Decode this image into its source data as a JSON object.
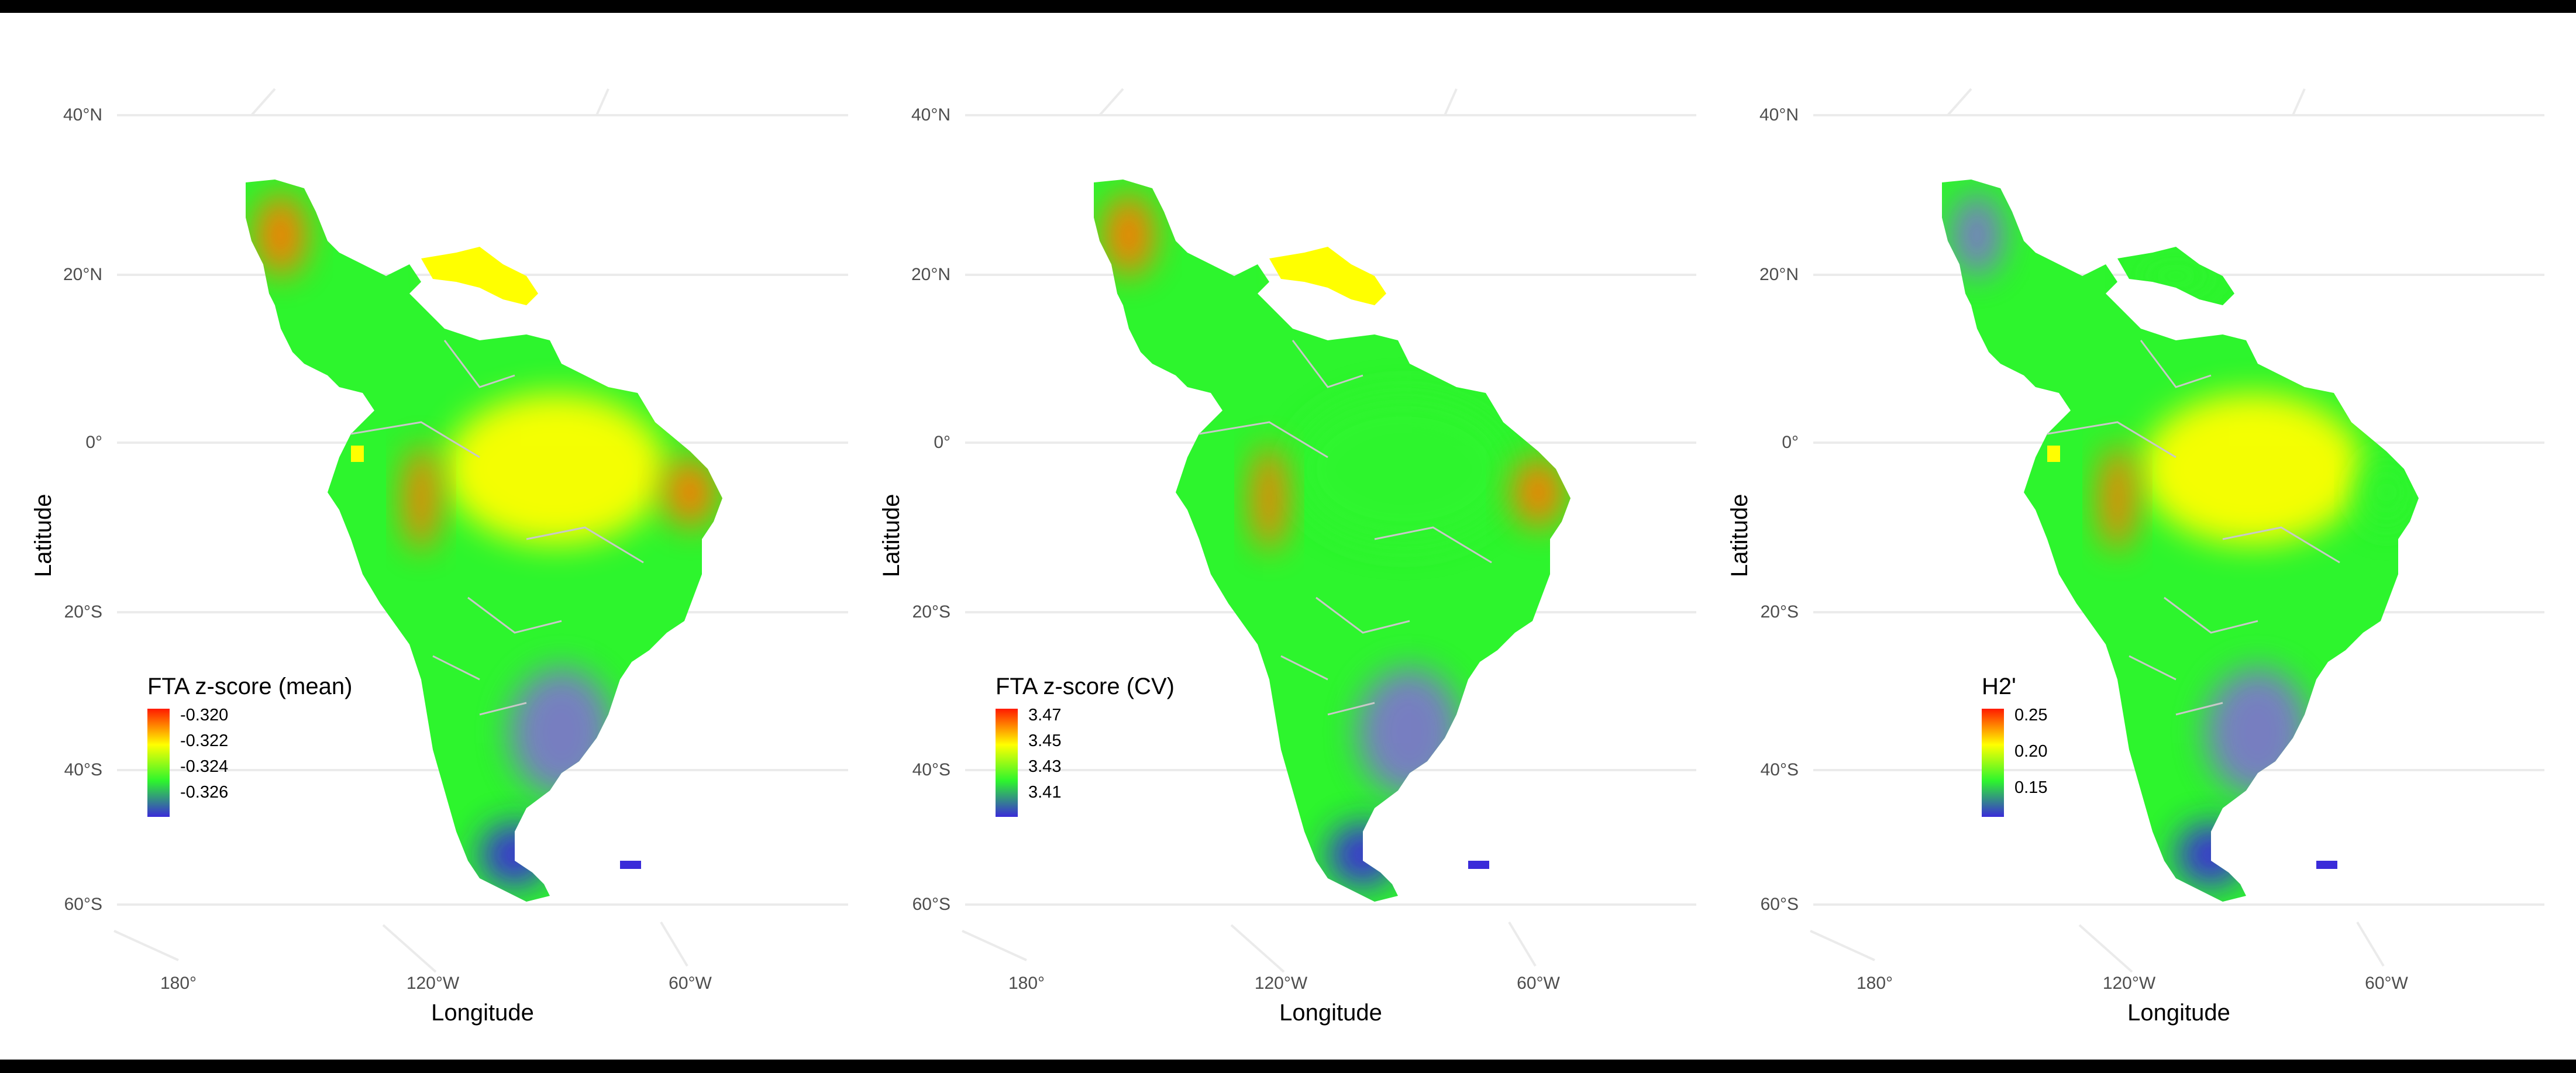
{
  "colors": {
    "background": "#ffffff",
    "gridline": "#ebebeb",
    "country_border": "#c8c8c8",
    "scale_low": "#3a2bd9",
    "scale_mid_low": "#8a8a8a",
    "scale_mid": "#2df52d",
    "scale_mid_high": "#ffff00",
    "scale_high": "#ff1a00"
  },
  "axes": {
    "x_title": "Longitude",
    "y_title": "Latitude",
    "lat_ticks": [
      "40°N",
      "20°N",
      "0°",
      "20°S",
      "40°S",
      "60°S"
    ],
    "lon_ticks": [
      "180°",
      "120°W",
      "60°W"
    ]
  },
  "chart_data": [
    {
      "type": "heatmap",
      "projection": "orthographic-like map of Latin America",
      "legend": {
        "title": "FTA z-score (mean)",
        "ticks": [
          "-0.320",
          "-0.322",
          "-0.324",
          "-0.326"
        ],
        "colors": [
          "#ff1a00",
          "#ffff00",
          "#2df52d",
          "#3a2bd9"
        ],
        "placement": "bottom-left"
      },
      "regions": {
        "mexico_west": "high",
        "caribbean": "mid-high",
        "amazon": "mid-high",
        "brazil_east_coast": "high",
        "andes_peru_ecuador": "high",
        "southern_cone": "low",
        "patagonia": "lowest"
      }
    },
    {
      "type": "heatmap",
      "projection": "orthographic-like map of Latin America",
      "legend": {
        "title": "FTA z-score (CV)",
        "ticks": [
          "3.47",
          "3.45",
          "3.43",
          "3.41"
        ],
        "colors": [
          "#ff1a00",
          "#ffff00",
          "#2df52d",
          "#3a2bd9"
        ],
        "placement": "bottom-left"
      },
      "regions": {
        "mexico_west": "high",
        "caribbean": "mid-high",
        "amazon": "mid",
        "brazil_east_coast": "high",
        "andes_peru_ecuador": "high",
        "southern_cone": "low",
        "patagonia": "lowest"
      }
    },
    {
      "type": "heatmap",
      "projection": "orthographic-like map of Latin America",
      "legend": {
        "title": "H2'",
        "ticks": [
          "0.25",
          "0.20",
          "0.15"
        ],
        "colors": [
          "#ff1a00",
          "#ffff00",
          "#2df52d",
          "#3a2bd9"
        ],
        "placement": "bottom-left"
      },
      "regions": {
        "mexico_west": "low",
        "caribbean": "mid",
        "amazon": "mid-high",
        "brazil_east_coast": "mid",
        "andes_peru_ecuador": "high",
        "southern_cone": "low",
        "patagonia": "lowest"
      }
    }
  ]
}
